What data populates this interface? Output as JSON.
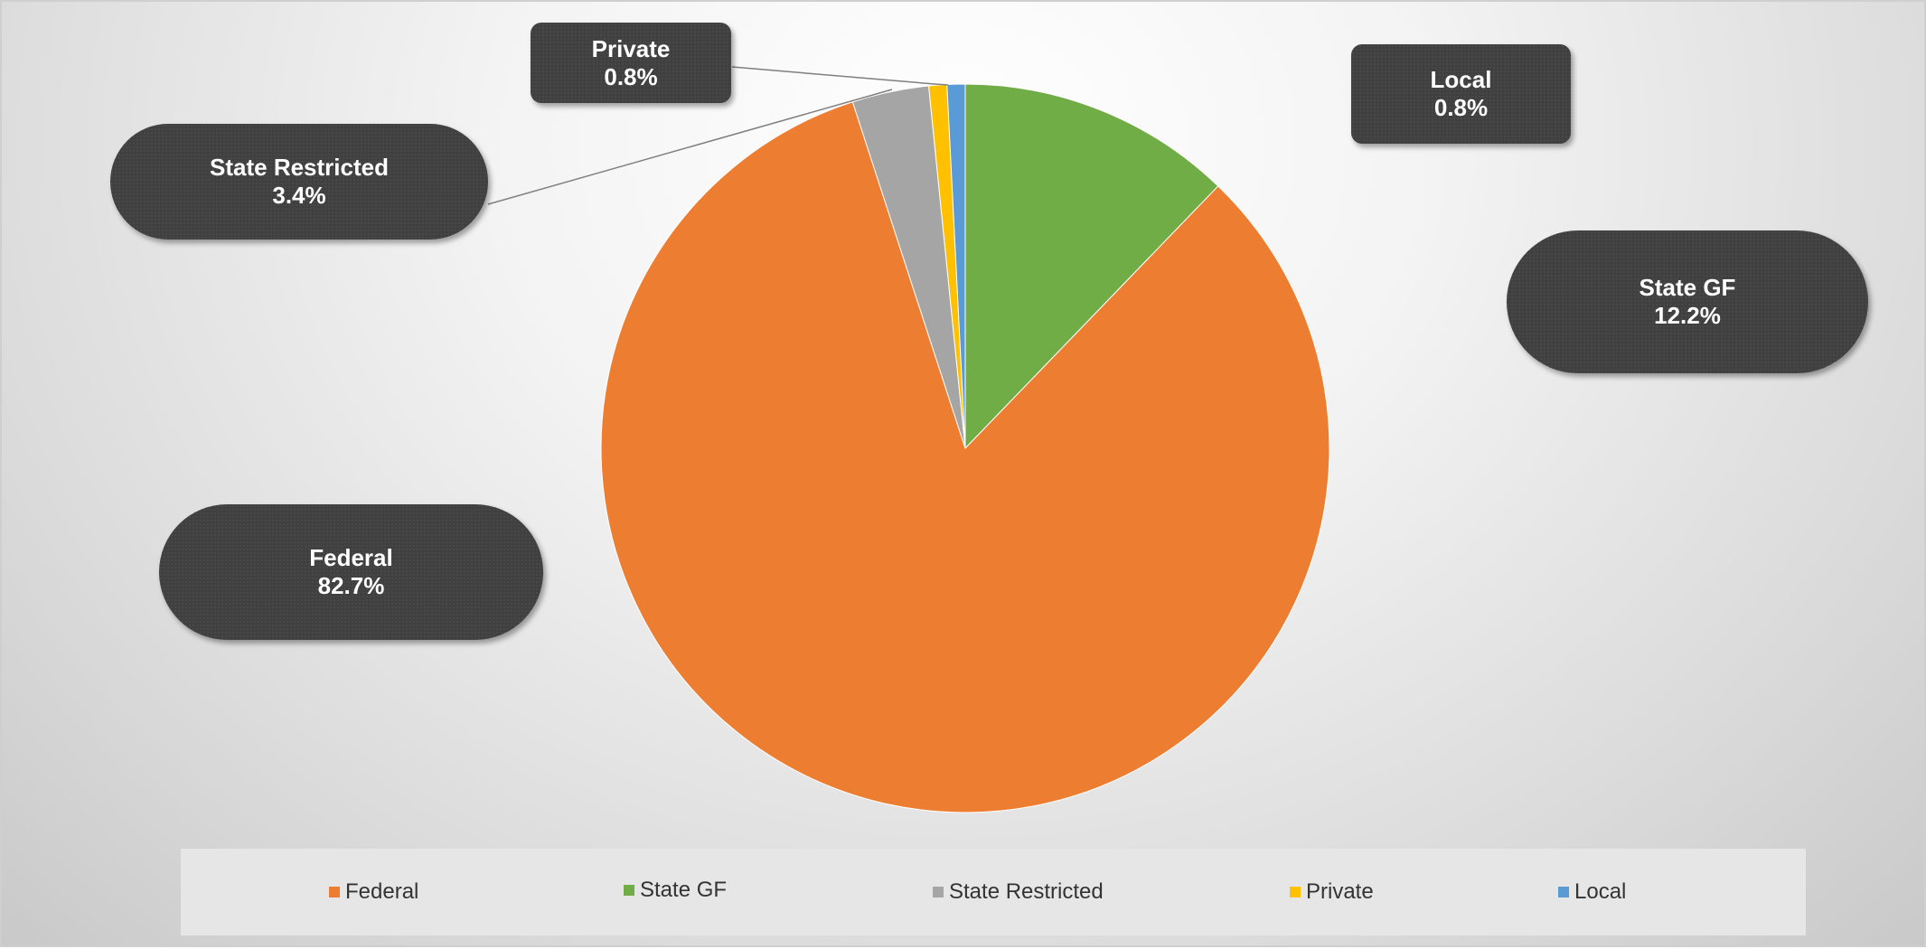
{
  "chart_data": {
    "type": "pie",
    "slices": [
      {
        "label": "State GF",
        "value": 12.2,
        "display": "12.2%",
        "color": "#70AD47"
      },
      {
        "label": "Federal",
        "value": 82.7,
        "display": "82.7%",
        "color": "#ED7D31"
      },
      {
        "label": "State Restricted",
        "value": 3.4,
        "display": "3.4%",
        "color": "#A5A5A5"
      },
      {
        "label": "Private",
        "value": 0.8,
        "display": "0.8%",
        "color": "#FFC000"
      },
      {
        "label": "Local",
        "value": 0.8,
        "display": "0.8%",
        "color": "#5B9BD5"
      }
    ],
    "start": "12 o'clock, clockwise",
    "legend_position": "bottom",
    "legend": [
      {
        "label": "Federal",
        "color": "#ED7D31"
      },
      {
        "label": "State GF",
        "color": "#70AD47"
      },
      {
        "label": "State Restricted",
        "color": "#A5A5A5"
      },
      {
        "label": "Private",
        "color": "#FFC000"
      },
      {
        "label": "Local",
        "color": "#5B9BD5"
      }
    ]
  }
}
